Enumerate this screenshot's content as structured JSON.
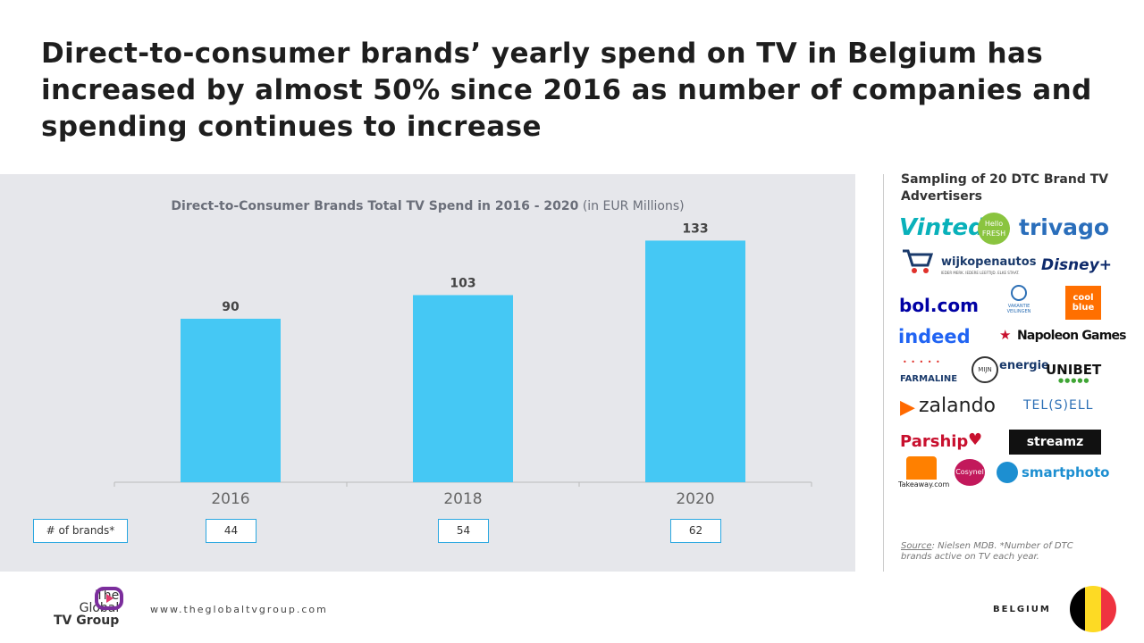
{
  "title": "Direct-to-consumer brands’ yearly spend on TV in Belgium has increased by almost 50% since 2016 as number of companies and spending continues to increase",
  "chart_data": {
    "type": "bar",
    "title": "Direct-to-Consumer Brands Total TV Spend in 2016 - 2020",
    "title_unit": "(in EUR Millions)",
    "categories": [
      "2016",
      "2018",
      "2020"
    ],
    "values": [
      90,
      103,
      133
    ],
    "ylim": [
      0,
      145
    ],
    "grid": false,
    "bar_color": "#45c8f4",
    "brands_label": "# of brands*",
    "brands": [
      "44",
      "54",
      "62"
    ]
  },
  "sidebar": {
    "title": "Sampling of 20 DTC Brand TV Advertisers",
    "logos": [
      {
        "name": "vinted",
        "text": "Vinted",
        "color": "#09b1ba"
      },
      {
        "name": "hellofresh",
        "text": "Hello FRESH",
        "color": "#8ac43f"
      },
      {
        "name": "trivago",
        "text": "trivago",
        "color": "#2a6ebb"
      },
      {
        "name": "wijkopenautos",
        "text": "wijkopenautos",
        "sub": "IEDER MERK. IEDERE LEEFTIJD. ELKE STAAT.",
        "color": "#1a3a6b"
      },
      {
        "name": "disney-plus",
        "text": "Disney+",
        "color": "#0e2a6b"
      },
      {
        "name": "bol-com",
        "text": "bol.com",
        "color": "#0000a4"
      },
      {
        "name": "vakantieveilingen",
        "text": "VAKANTIE VEILINGEN",
        "color": "#2c6fb5"
      },
      {
        "name": "coolblue",
        "text": "cool blue",
        "color": "#ffffff"
      },
      {
        "name": "indeed",
        "text": "indeed",
        "color": "#2164f3"
      },
      {
        "name": "napoleon-games",
        "text": "Napoleon Games",
        "color": "#111111"
      },
      {
        "name": "farmaline",
        "text": "FARMALINE",
        "color": "#1a3a6b"
      },
      {
        "name": "mijnenergie",
        "text": "energie",
        "sub": "MIJN",
        "color": "#1a3a6b"
      },
      {
        "name": "unibet",
        "text": "UNIBET",
        "color": "#111111"
      },
      {
        "name": "zalando",
        "text": "zalando",
        "color": "#222222"
      },
      {
        "name": "telesell",
        "text": "TEL(S)ELL",
        "color": "#2c6fb5"
      },
      {
        "name": "parship",
        "text": "Parship",
        "color": "#c8102e"
      },
      {
        "name": "streamz",
        "text": "streamz",
        "color": "#ffffff"
      },
      {
        "name": "takeaway",
        "text": "Takeaway.com",
        "color": "#ff8000"
      },
      {
        "name": "cosynel",
        "text": "Cosynel",
        "color": "#ffffff"
      },
      {
        "name": "smartphoto",
        "text": "smartphoto",
        "color": "#1d8fd1"
      }
    ]
  },
  "source": {
    "prefix": "Source",
    "text": ": Nielsen MDB. *Number of DTC brands active on TV each year."
  },
  "footer": {
    "url": "www.theglobaltvgroup.com",
    "logo_line1": "The",
    "logo_line2": "Global",
    "logo_line3": "TV Group",
    "country": "BELGIUM"
  }
}
